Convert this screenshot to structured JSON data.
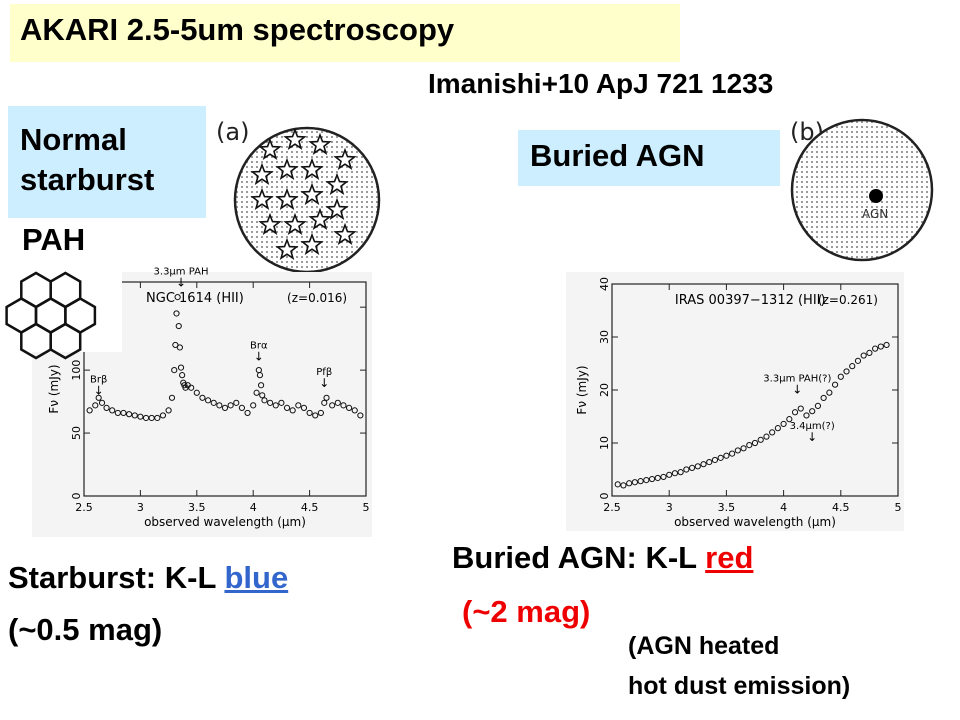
{
  "slide": {
    "title": "AKARI 2.5-5um spectroscopy",
    "reference": "Imanishi+10 ApJ 721 1233",
    "normal_label_line1": "Normal",
    "normal_label_line2": "starburst",
    "pah_label": "PAH",
    "agn_label": "Buried AGN",
    "panel_a_tag": "(a)",
    "panel_b_tag": "(b)",
    "agn_dot_label": "AGN",
    "starburst_prefix": "Starburst: K-L ",
    "starburst_color_word": "blue",
    "starburst_mag": "(~0.5 mag)",
    "agn_prefix": "Buried AGN: K-L ",
    "agn_color_word": "red",
    "agn_mag": "(~2 mag)",
    "agn_note_line1": "(AGN heated",
    "agn_note_line2": "hot dust emission)",
    "colors": {
      "title_bg": "#ffffcc",
      "label_bg": "#cceeff",
      "blue": "#3366cc",
      "red": "#ee0000"
    }
  },
  "chart_data": [
    {
      "type": "scatter",
      "title": "NGC 1614 (HII)",
      "subtitle": "(z=0.016)",
      "xlabel": "observed wavelength (μm)",
      "ylabel": "Fν (mJy)",
      "xlim": [
        2.5,
        5.0
      ],
      "ylim": [
        0,
        170
      ],
      "xticks": [
        2.5,
        3,
        3.5,
        4,
        4.5,
        5
      ],
      "yticks": [
        0,
        50,
        100,
        150
      ],
      "annotations": [
        {
          "text": "Brβ",
          "x": 2.63,
          "y": 79
        },
        {
          "text": "3.3μm PAH",
          "x": 3.36,
          "y": 165
        },
        {
          "text": "Brα",
          "x": 4.05,
          "y": 106
        },
        {
          "text": "Pfβ",
          "x": 4.63,
          "y": 85
        }
      ],
      "x": [
        2.55,
        2.6,
        2.63,
        2.66,
        2.7,
        2.75,
        2.8,
        2.85,
        2.9,
        2.95,
        3.0,
        3.05,
        3.1,
        3.15,
        3.2,
        3.25,
        3.28,
        3.3,
        3.31,
        3.32,
        3.33,
        3.34,
        3.35,
        3.36,
        3.37,
        3.38,
        3.39,
        3.4,
        3.42,
        3.45,
        3.5,
        3.55,
        3.6,
        3.65,
        3.7,
        3.75,
        3.8,
        3.85,
        3.9,
        3.95,
        4.0,
        4.03,
        4.05,
        4.06,
        4.07,
        4.08,
        4.1,
        4.15,
        4.2,
        4.25,
        4.3,
        4.35,
        4.4,
        4.45,
        4.5,
        4.55,
        4.6,
        4.63,
        4.65,
        4.7,
        4.75,
        4.8,
        4.85,
        4.9,
        4.95
      ],
      "y": [
        68,
        72,
        78,
        74,
        70,
        68,
        66,
        66,
        65,
        64,
        63,
        62,
        62,
        62,
        64,
        68,
        78,
        100,
        120,
        145,
        158,
        135,
        118,
        102,
        96,
        90,
        88,
        86,
        88,
        86,
        82,
        78,
        76,
        74,
        72,
        70,
        72,
        74,
        70,
        66,
        72,
        82,
        100,
        96,
        88,
        80,
        76,
        74,
        72,
        74,
        70,
        68,
        72,
        70,
        66,
        64,
        66,
        74,
        78,
        72,
        74,
        72,
        70,
        68,
        64
      ]
    },
    {
      "type": "scatter",
      "title": "IRAS 00397−1312 (HII)",
      "subtitle": "(z=0.261)",
      "xlabel": "observed wavelength (μm)",
      "ylabel": "Fν (mJy)",
      "xlim": [
        2.5,
        5.0
      ],
      "ylim": [
        0,
        40
      ],
      "xticks": [
        2.5,
        3,
        3.5,
        4,
        4.5,
        5
      ],
      "yticks": [
        0,
        10,
        20,
        30,
        40
      ],
      "annotations": [
        {
          "text": "3.3μm PAH(?)",
          "x": 4.12,
          "y": 19
        },
        {
          "text": "3.4μm(?)",
          "x": 4.25,
          "y": 10
        }
      ],
      "x": [
        2.55,
        2.6,
        2.65,
        2.7,
        2.75,
        2.8,
        2.85,
        2.9,
        2.95,
        3.0,
        3.05,
        3.1,
        3.15,
        3.2,
        3.25,
        3.3,
        3.35,
        3.4,
        3.45,
        3.5,
        3.55,
        3.6,
        3.65,
        3.7,
        3.75,
        3.8,
        3.85,
        3.9,
        3.95,
        4.0,
        4.05,
        4.1,
        4.15,
        4.2,
        4.25,
        4.3,
        4.35,
        4.4,
        4.45,
        4.5,
        4.55,
        4.6,
        4.65,
        4.7,
        4.75,
        4.8,
        4.85,
        4.9
      ],
      "y": [
        2.2,
        2.0,
        2.4,
        2.6,
        2.8,
        3.0,
        3.2,
        3.4,
        3.6,
        4.0,
        4.3,
        4.5,
        5.0,
        5.3,
        5.6,
        6.0,
        6.4,
        6.8,
        7.2,
        7.6,
        8.0,
        8.6,
        9.0,
        9.6,
        10.0,
        10.6,
        11.2,
        12.0,
        12.8,
        13.6,
        14.5,
        15.8,
        16.5,
        15.2,
        16.0,
        17.0,
        18.5,
        19.5,
        21.0,
        22.5,
        23.5,
        24.5,
        25.5,
        26.5,
        27.0,
        27.8,
        28.2,
        28.5
      ]
    }
  ]
}
